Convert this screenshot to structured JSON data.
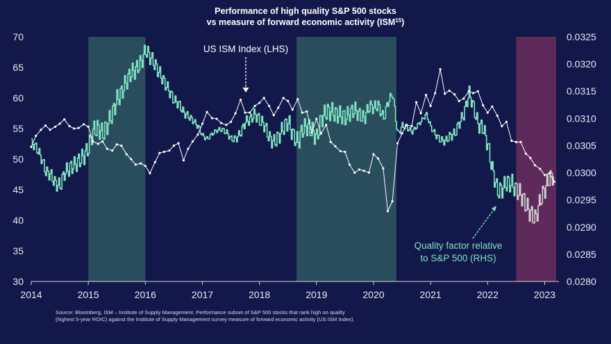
{
  "chart_data": {
    "type": "line",
    "title": "Performance of high quality S&P 500 stocks",
    "subtitle": "vs measure of forward economic activity (ISM",
    "subtitle_superscript": "15",
    "subtitle_end": ")",
    "x_ticks": [
      "2014",
      "2015",
      "2016",
      "2017",
      "2018",
      "2019",
      "2020",
      "2021",
      "2022",
      "2023"
    ],
    "xlim": [
      2014.0,
      2023.25
    ],
    "y_left_ticks": [
      "30",
      "35",
      "40",
      "45",
      "50",
      "55",
      "60",
      "65",
      "70"
    ],
    "ylim_left": [
      30,
      70
    ],
    "y_right_ticks": [
      "0.0280",
      "0.0285",
      "0.0290",
      "0.0295",
      "0.0300",
      "0.0305",
      "0.0310",
      "0.0315",
      "0.0320",
      "0.0325"
    ],
    "ylim_right": [
      0.028,
      0.0325
    ],
    "shaded_regions": [
      {
        "x0": 2015.0,
        "x1": 2016.0,
        "color": "#2a4d5e"
      },
      {
        "x0": 2018.65,
        "x1": 2020.4,
        "color": "#2a4d5e"
      },
      {
        "x0": 2022.5,
        "x1": 2023.2,
        "color": "#5e2a5b"
      }
    ],
    "annotations": {
      "ism_label": "US ISM Index (LHS)",
      "quality_label_line1": "Quality factor relative",
      "quality_label_line2": "to S&P 500 (RHS)"
    },
    "series": [
      {
        "name": "US ISM Index (LHS)",
        "axis": "left",
        "color": "#ffffff",
        "x": [
          2014.0,
          2014.08,
          2014.17,
          2014.25,
          2014.33,
          2014.42,
          2014.5,
          2014.58,
          2014.67,
          2014.75,
          2014.83,
          2014.92,
          2015.0,
          2015.08,
          2015.17,
          2015.25,
          2015.33,
          2015.42,
          2015.5,
          2015.58,
          2015.67,
          2015.75,
          2015.83,
          2015.92,
          2016.0,
          2016.08,
          2016.17,
          2016.25,
          2016.33,
          2016.42,
          2016.5,
          2016.58,
          2016.67,
          2016.75,
          2016.83,
          2016.92,
          2017.0,
          2017.08,
          2017.17,
          2017.25,
          2017.33,
          2017.42,
          2017.5,
          2017.58,
          2017.67,
          2017.75,
          2017.83,
          2017.92,
          2018.0,
          2018.08,
          2018.17,
          2018.25,
          2018.33,
          2018.42,
          2018.5,
          2018.58,
          2018.67,
          2018.75,
          2018.83,
          2018.92,
          2019.0,
          2019.08,
          2019.17,
          2019.25,
          2019.33,
          2019.42,
          2019.5,
          2019.58,
          2019.67,
          2019.75,
          2019.83,
          2019.92,
          2020.0,
          2020.08,
          2020.17,
          2020.25,
          2020.33,
          2020.42,
          2020.5,
          2020.58,
          2020.67,
          2020.75,
          2020.83,
          2020.92,
          2021.0,
          2021.08,
          2021.17,
          2021.25,
          2021.33,
          2021.42,
          2021.5,
          2021.58,
          2021.67,
          2021.75,
          2021.83,
          2021.92,
          2022.0,
          2022.08,
          2022.17,
          2022.25,
          2022.33,
          2022.42,
          2022.5,
          2022.58,
          2022.67,
          2022.75,
          2022.83,
          2022.92,
          2023.0,
          2023.08,
          2023.17
        ],
        "values": [
          52.0,
          53.8,
          54.8,
          55.5,
          54.8,
          55.3,
          55.8,
          56.5,
          55.4,
          55.0,
          55.1,
          55.7,
          55.3,
          52.9,
          52.5,
          52.9,
          51.7,
          51.4,
          52.4,
          52.2,
          50.8,
          50.0,
          49.1,
          49.3,
          48.9,
          47.7,
          49.5,
          51.0,
          51.2,
          51.4,
          52.2,
          52.6,
          49.8,
          51.7,
          52.9,
          54.0,
          55.8,
          57.7,
          56.7,
          56.6,
          55.9,
          55.6,
          56.1,
          57.5,
          59.7,
          57.6,
          57.6,
          58.7,
          59.2,
          60.0,
          58.7,
          57.2,
          58.4,
          60.0,
          59.5,
          58.1,
          59.8,
          57.6,
          57.8,
          54.3,
          56.6,
          54.2,
          55.6,
          52.8,
          52.1,
          51.3,
          51.2,
          49.1,
          47.8,
          48.3,
          48.1,
          47.8,
          50.8,
          50.1,
          48.5,
          41.5,
          43.1,
          52.6,
          54.2,
          55.6,
          55.4,
          59.3,
          57.5,
          60.5,
          58.7,
          60.8,
          64.7,
          60.7,
          61.2,
          60.6,
          59.5,
          59.9,
          61.1,
          60.8,
          61.1,
          58.8,
          57.6,
          58.6,
          57.1,
          55.4,
          56.1,
          53.0,
          52.8,
          52.8,
          50.9,
          50.2,
          49.0,
          48.4,
          47.4,
          47.7,
          46.3
        ]
      },
      {
        "name": "Quality factor relative to S&P 500 (RHS)",
        "axis": "right",
        "color": "#7fe3c1",
        "color_highlight": "#cfcfcf",
        "x": [
          2014.0,
          2014.08,
          2014.17,
          2014.25,
          2014.33,
          2014.42,
          2014.5,
          2014.58,
          2014.67,
          2014.75,
          2014.83,
          2014.92,
          2015.0,
          2015.08,
          2015.17,
          2015.25,
          2015.33,
          2015.42,
          2015.5,
          2015.58,
          2015.67,
          2015.75,
          2015.83,
          2015.92,
          2016.0,
          2016.08,
          2016.17,
          2016.25,
          2016.33,
          2016.42,
          2016.5,
          2016.58,
          2016.67,
          2016.75,
          2016.83,
          2016.92,
          2017.0,
          2017.08,
          2017.17,
          2017.25,
          2017.33,
          2017.42,
          2017.5,
          2017.58,
          2017.67,
          2017.75,
          2017.83,
          2017.92,
          2018.0,
          2018.08,
          2018.17,
          2018.25,
          2018.33,
          2018.42,
          2018.5,
          2018.58,
          2018.67,
          2018.75,
          2018.83,
          2018.92,
          2019.0,
          2019.08,
          2019.17,
          2019.25,
          2019.33,
          2019.42,
          2019.5,
          2019.58,
          2019.67,
          2019.75,
          2019.83,
          2019.92,
          2020.0,
          2020.08,
          2020.17,
          2020.25,
          2020.33,
          2020.42,
          2020.5,
          2020.58,
          2020.67,
          2020.75,
          2020.83,
          2020.92,
          2021.0,
          2021.08,
          2021.17,
          2021.25,
          2021.33,
          2021.42,
          2021.5,
          2021.58,
          2021.67,
          2021.75,
          2021.83,
          2021.92,
          2022.0,
          2022.08,
          2022.17,
          2022.25,
          2022.33,
          2022.42,
          2022.5,
          2022.58,
          2022.67,
          2022.75,
          2022.83,
          2022.92,
          2023.0,
          2023.08,
          2023.17
        ],
        "values": [
          0.03054,
          0.03047,
          0.03028,
          0.03002,
          0.02997,
          0.0298,
          0.02976,
          0.03,
          0.03009,
          0.03014,
          0.03022,
          0.03031,
          0.03046,
          0.03078,
          0.03082,
          0.03072,
          0.03088,
          0.0311,
          0.03135,
          0.03148,
          0.0317,
          0.03184,
          0.0319,
          0.03203,
          0.03226,
          0.03213,
          0.03198,
          0.03182,
          0.03166,
          0.03149,
          0.03133,
          0.03127,
          0.0311,
          0.03104,
          0.03096,
          0.03085,
          0.03068,
          0.03062,
          0.03072,
          0.03078,
          0.0308,
          0.03074,
          0.03062,
          0.03062,
          0.03074,
          0.03094,
          0.03098,
          0.03108,
          0.03096,
          0.03088,
          0.03064,
          0.03056,
          0.03066,
          0.03084,
          0.03094,
          0.0307,
          0.03056,
          0.03079,
          0.03086,
          0.03077,
          0.03064,
          0.031,
          0.03112,
          0.03113,
          0.03108,
          0.03106,
          0.03102,
          0.0311,
          0.03116,
          0.03106,
          0.031,
          0.03122,
          0.0312,
          0.03124,
          0.031,
          0.0313,
          0.03146,
          0.0307,
          0.03087,
          0.03083,
          0.03075,
          0.03085,
          0.03095,
          0.03108,
          0.03084,
          0.0307,
          0.0306,
          0.03058,
          0.03067,
          0.03072,
          0.03092,
          0.03108,
          0.03148,
          0.0312,
          0.03088,
          0.03082,
          0.0305,
          0.03005,
          0.02966,
          0.0297,
          0.02982,
          0.0298,
          0.02968,
          0.0296,
          0.0294,
          0.02925,
          0.02915,
          0.0295,
          0.0297,
          0.0299,
          0.02995
        ]
      }
    ]
  },
  "source_note": "Source: Bloomberg, ISM – Institute of Supply Management. Performance subset of S&P 500 stocks that rank high on quality (highest 5-year ROIC) against the Institute of Supply Management survey measure of forward economic activity (US ISM Index)."
}
